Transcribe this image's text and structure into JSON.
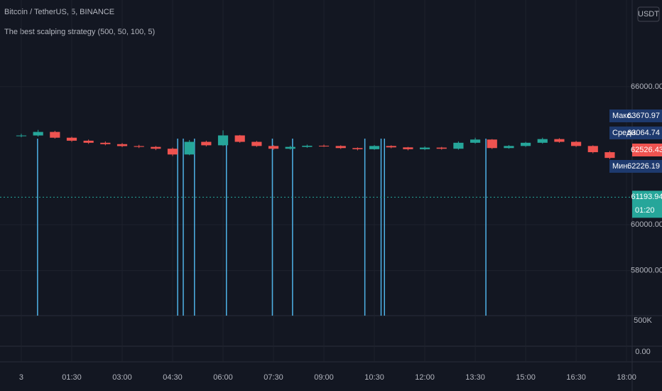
{
  "chart_data": {
    "type": "candlestick",
    "title": "Bitcoin / TetherUS, 5, BINANCE",
    "subtitle": "The best scalping strategy (500, 50, 100, 5)",
    "currency": "USDT",
    "up_color": "#26a69a",
    "down_color": "#ef5350",
    "x": [
      0,
      30,
      60,
      90,
      120,
      150,
      180,
      210,
      240,
      270,
      300,
      330,
      360,
      390,
      420,
      450,
      480,
      510,
      540,
      570,
      600,
      630,
      660,
      690,
      720,
      750,
      780,
      810,
      840,
      870,
      900,
      930,
      960,
      990,
      1020,
      1050
    ],
    "open": [
      63850,
      63877,
      64031,
      63780,
      63650,
      63560,
      63500,
      63415,
      63380,
      63300,
      63050,
      63600,
      63450,
      63880,
      63600,
      63420,
      63300,
      63380,
      63430,
      63420,
      63330,
      63280,
      63420,
      63360,
      63280,
      63350,
      63300,
      63560,
      63700,
      63330,
      63420,
      63560,
      63720,
      63600,
      63420,
      63150
    ],
    "close": [
      63877,
      64031,
      63780,
      63650,
      63560,
      63500,
      63415,
      63380,
      63300,
      63050,
      63600,
      63450,
      63880,
      63600,
      63420,
      63300,
      63380,
      63430,
      63420,
      63330,
      63280,
      63420,
      63360,
      63280,
      63350,
      63300,
      63560,
      63700,
      63330,
      63420,
      63560,
      63720,
      63600,
      63420,
      63150,
      62900
    ],
    "high": [
      63950,
      64120,
      64080,
      63820,
      63700,
      63620,
      63550,
      63470,
      63420,
      63350,
      63680,
      63650,
      64100,
      63900,
      63640,
      63460,
      63430,
      63480,
      63480,
      63450,
      63360,
      63460,
      63450,
      63380,
      63400,
      63380,
      63620,
      63780,
      63720,
      63460,
      63600,
      63780,
      63760,
      63640,
      63450,
      63200
    ],
    "low": [
      63800,
      63830,
      63740,
      63600,
      63510,
      63450,
      63370,
      63330,
      63240,
      62980,
      63020,
      63400,
      63420,
      63560,
      63380,
      63250,
      63260,
      63340,
      63380,
      63290,
      63230,
      63250,
      63320,
      63230,
      63240,
      63260,
      63260,
      63520,
      63290,
      63300,
      63380,
      63520,
      63560,
      63380,
      63100,
      62850
    ],
    "signals": [
      29,
      279,
      289,
      309,
      366,
      448,
      484,
      613,
      642,
      648,
      829
    ],
    "xlim": [
      -38,
      1090
    ],
    "ylim": [
      56040,
      69770
    ],
    "xticks": [
      {
        "value": 0,
        "label": "3"
      },
      {
        "value": 90,
        "label": "01:30"
      },
      {
        "value": 180,
        "label": "03:00"
      },
      {
        "value": 270,
        "label": "04:30"
      },
      {
        "value": 360,
        "label": "06:00"
      },
      {
        "value": 450,
        "label": "07:30"
      },
      {
        "value": 540,
        "label": "09:00"
      },
      {
        "value": 630,
        "label": "10:30"
      },
      {
        "value": 720,
        "label": "12:00"
      },
      {
        "value": 810,
        "label": "13:30"
      },
      {
        "value": 900,
        "label": "15:00"
      },
      {
        "value": 990,
        "label": "16:30"
      },
      {
        "value": 1080,
        "label": "18:00"
      }
    ],
    "yticks": [
      {
        "value": 58000,
        "label": "58000.00"
      },
      {
        "value": 60000,
        "label": "60000.00"
      },
      {
        "value": 66000,
        "label": "66000.00"
      }
    ],
    "stats": [
      {
        "name": "Макс.",
        "value": 63670.97
      },
      {
        "name": "Средн.",
        "value": 63064.74
      },
      {
        "name": "Мин.",
        "value": 62226.19
      }
    ],
    "last_price": 62526.43,
    "marker_price": 61193.94,
    "countdown": "01:20",
    "lower_ticks": [
      {
        "value": 500000,
        "label": "500K"
      },
      {
        "value": 0,
        "label": "0.00"
      }
    ],
    "grid": true
  }
}
